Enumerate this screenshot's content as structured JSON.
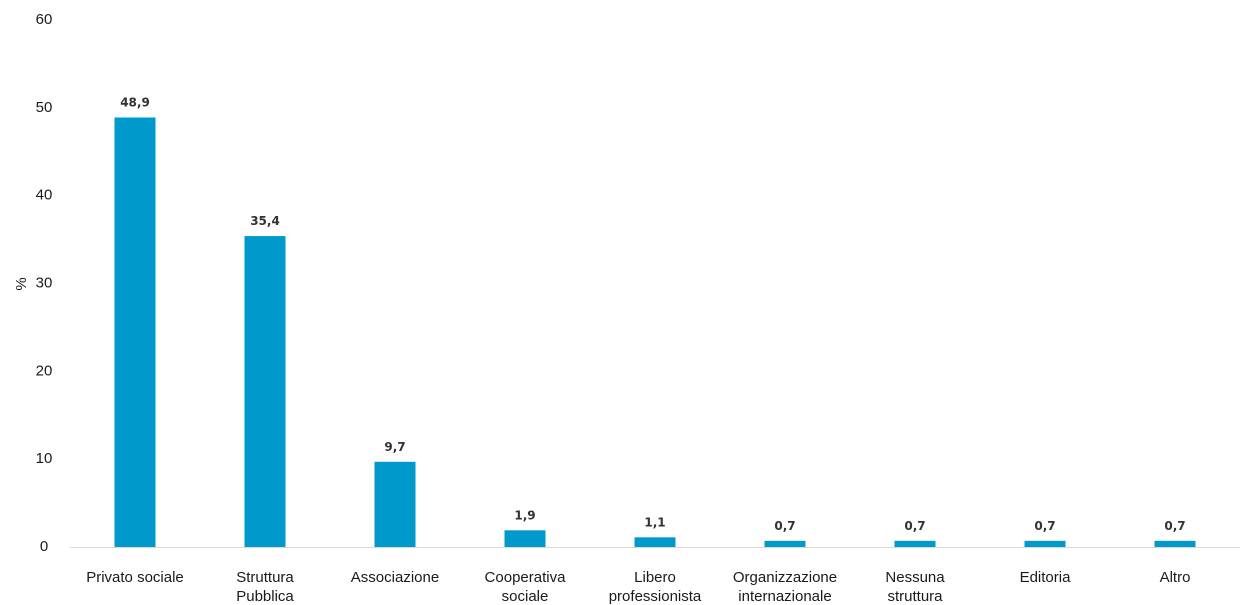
{
  "chart_data": {
    "type": "bar",
    "title": "",
    "xlabel": "",
    "ylabel": "%",
    "ylim": [
      0,
      60
    ],
    "yticks": [
      "0",
      "10",
      "20",
      "30",
      "40",
      "50",
      "60"
    ],
    "grid": false,
    "bar_color": "#0099cc",
    "categories": [
      [
        "Privato sociale"
      ],
      [
        "Struttura",
        "Pubblica"
      ],
      [
        "Associazione"
      ],
      [
        "Cooperativa",
        "sociale"
      ],
      [
        "Libero",
        "professionista"
      ],
      [
        "Organizzazione",
        "internazionale"
      ],
      [
        "Nessuna",
        "struttura"
      ],
      [
        "Editoria"
      ],
      [
        "Altro"
      ]
    ],
    "values": [
      48.9,
      35.4,
      9.7,
      1.9,
      1.1,
      0.7,
      0.7,
      0.7,
      0.7
    ],
    "value_labels": [
      "48,9",
      "35,4",
      "9,7",
      "1,9",
      "1,1",
      "0,7",
      "0,7",
      "0,7",
      "0,7"
    ]
  }
}
